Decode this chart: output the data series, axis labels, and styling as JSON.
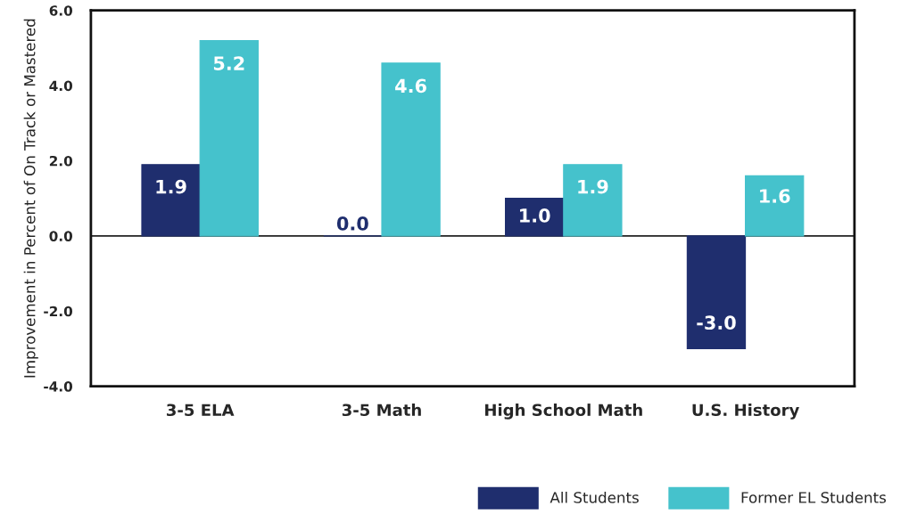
{
  "chart_data": {
    "type": "bar",
    "ylabel": "Improvement in Percent of On Track or Mastered",
    "categories": [
      "3-5 ELA",
      "3-5 Math",
      "High School Math",
      "U.S. History"
    ],
    "series": [
      {
        "name": "All Students",
        "color": "#1f2e6e",
        "values": [
          1.9,
          0.0,
          1.0,
          -3.0
        ],
        "value_labels": [
          "1.9",
          "0.0",
          "1.0",
          "-3.0"
        ]
      },
      {
        "name": "Former EL Students",
        "color": "#45c2cc",
        "values": [
          5.2,
          4.6,
          1.9,
          1.6
        ],
        "value_labels": [
          "5.2",
          "4.6",
          "1.9",
          "1.6"
        ]
      }
    ],
    "ylim": [
      -4,
      6
    ],
    "yticks": [
      {
        "value": -4,
        "label": "-4.0"
      },
      {
        "value": -2,
        "label": "-2.0"
      },
      {
        "value": 0,
        "label": "0.0"
      },
      {
        "value": 2,
        "label": "2.0"
      },
      {
        "value": 4,
        "label": "4.0"
      },
      {
        "value": 6,
        "label": "6.0"
      }
    ],
    "ref_lines": [
      {
        "axis": "y",
        "value": 0,
        "color": "#222222"
      }
    ],
    "grid": false,
    "legend": "bottom right"
  }
}
